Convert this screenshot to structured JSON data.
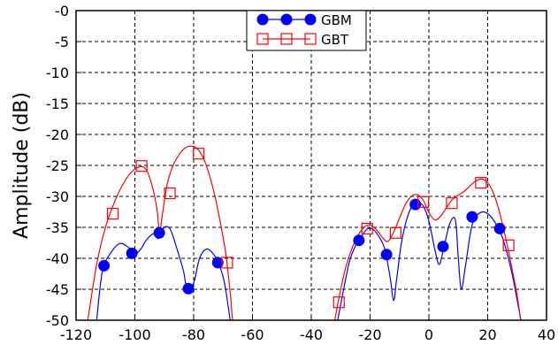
{
  "chart_data": {
    "type": "line",
    "title": "",
    "xlabel": "",
    "ylabel": "Amplitude (dB)",
    "xlim": [
      -120,
      40
    ],
    "ylim": [
      -50,
      0
    ],
    "grid": true,
    "legend_position": "top-center",
    "x_ticks": [
      -120,
      -100,
      -80,
      -60,
      -40,
      -20,
      0,
      20,
      40
    ],
    "x_tick_labels": [
      "-120",
      "-100",
      "-80",
      "-60",
      "-40",
      "-20",
      "0",
      "20",
      "40"
    ],
    "y_ticks": [
      0,
      -5,
      -10,
      -15,
      -20,
      -25,
      -30,
      -35,
      -40,
      -45,
      -50
    ],
    "y_tick_labels": [
      "-0",
      "-5",
      "-10",
      "-15",
      "-20",
      "-25",
      "-30",
      "-35",
      "-40",
      "-45",
      "-50"
    ],
    "series": [
      {
        "name": "GBM",
        "color": "#0000ff",
        "marker": "filled-circle",
        "markers": [
          [
            -110.5,
            -41.2
          ],
          [
            -101,
            -39.2
          ],
          [
            -91.7,
            -35.9
          ],
          [
            -81.8,
            -44.9
          ],
          [
            -71.8,
            -40.7
          ],
          [
            -23.8,
            -37.1
          ],
          [
            -14.4,
            -39.4
          ],
          [
            -4.6,
            -31.3
          ],
          [
            4.8,
            -38.1
          ],
          [
            14.7,
            -33.3
          ],
          [
            24.1,
            -35.2
          ]
        ],
        "curve_groups": [
          [
            [
              -113,
              -50
            ],
            [
              -111,
              -42
            ],
            [
              -108,
              -39
            ],
            [
              -105,
              -37.6
            ],
            [
              -102,
              -38.3
            ],
            [
              -100,
              -39.3
            ],
            [
              -98,
              -38.5
            ],
            [
              -96,
              -37
            ],
            [
              -93.5,
              -36
            ],
            [
              -92,
              -36.8
            ],
            [
              -90,
              -35
            ],
            [
              -88,
              -35.3
            ],
            [
              -86,
              -38
            ],
            [
              -83.5,
              -42
            ],
            [
              -82.2,
              -45
            ],
            [
              -80,
              -44
            ],
            [
              -78,
              -40
            ],
            [
              -75.5,
              -38.5
            ],
            [
              -73,
              -39.5
            ],
            [
              -71.5,
              -40.8
            ],
            [
              -69.5,
              -44
            ],
            [
              -67.6,
              -50
            ]
          ],
          [
            [
              -31,
              -50
            ],
            [
              -29,
              -45
            ],
            [
              -27,
              -40.5
            ],
            [
              -25,
              -38
            ],
            [
              -23,
              -36.5
            ],
            [
              -21,
              -35.3
            ],
            [
              -19,
              -35.3
            ],
            [
              -17,
              -36.5
            ],
            [
              -15,
              -38.5
            ],
            [
              -13.2,
              -43
            ],
            [
              -12,
              -46.8
            ],
            [
              -11,
              -43.5
            ],
            [
              -9.5,
              -38
            ],
            [
              -8,
              -34.5
            ],
            [
              -6,
              -31.8
            ],
            [
              -4,
              -31.1
            ],
            [
              -2,
              -31.5
            ],
            [
              0,
              -34
            ],
            [
              2,
              -38.5
            ],
            [
              3.5,
              -41
            ],
            [
              5,
              -38.5
            ],
            [
              7,
              -34.5
            ],
            [
              9,
              -33.8
            ],
            [
              10,
              -40
            ],
            [
              11,
              -45
            ],
            [
              12.5,
              -41
            ],
            [
              14.5,
              -35
            ],
            [
              16.5,
              -33
            ],
            [
              18.5,
              -32.5
            ],
            [
              20.5,
              -33
            ],
            [
              22.5,
              -34.2
            ],
            [
              24.5,
              -36
            ],
            [
              26.5,
              -39
            ],
            [
              28.5,
              -43
            ],
            [
              30.5,
              -48
            ],
            [
              31.3,
              -50
            ]
          ]
        ]
      },
      {
        "name": "GBT",
        "color": "#ff0000",
        "marker": "open-square",
        "markers": [
          [
            -107.5,
            -32.8
          ],
          [
            -97.7,
            -25.1
          ],
          [
            -88.1,
            -29.5
          ],
          [
            -78.3,
            -23.1
          ],
          [
            -68.6,
            -40.7
          ],
          [
            -30.6,
            -47.1
          ],
          [
            -21,
            -35.2
          ],
          [
            -11.3,
            -35.9
          ],
          [
            -1.9,
            -30.9
          ],
          [
            7.8,
            -31.1
          ],
          [
            17.7,
            -27.8
          ],
          [
            27.1,
            -37.9
          ]
        ],
        "curve_groups": [
          [
            [
              -116,
              -50
            ],
            [
              -113,
              -41
            ],
            [
              -110,
              -35
            ],
            [
              -107,
              -31
            ],
            [
              -104,
              -28
            ],
            [
              -101,
              -26
            ],
            [
              -98,
              -25.2
            ],
            [
              -96,
              -25.8
            ],
            [
              -94,
              -28.5
            ],
            [
              -92.5,
              -32
            ],
            [
              -91.6,
              -35.5
            ],
            [
              -90.5,
              -32.5
            ],
            [
              -89,
              -28
            ],
            [
              -87,
              -25
            ],
            [
              -85,
              -23.3
            ],
            [
              -83,
              -22.2
            ],
            [
              -81,
              -21.9
            ],
            [
              -79,
              -22.2
            ],
            [
              -77,
              -23.5
            ],
            [
              -75,
              -26
            ],
            [
              -73,
              -29.5
            ],
            [
              -71,
              -34
            ],
            [
              -69,
              -39.5
            ],
            [
              -67.5,
              -46
            ],
            [
              -66.8,
              -50
            ]
          ],
          [
            [
              -32,
              -50
            ],
            [
              -30,
              -45
            ],
            [
              -28,
              -41
            ],
            [
              -26,
              -38.2
            ],
            [
              -24,
              -36.2
            ],
            [
              -22,
              -35
            ],
            [
              -20,
              -34.6
            ],
            [
              -18,
              -35.3
            ],
            [
              -16,
              -36.5
            ],
            [
              -14,
              -37.3
            ],
            [
              -12,
              -35.8
            ],
            [
              -10,
              -33.5
            ],
            [
              -8,
              -31.3
            ],
            [
              -6,
              -30
            ],
            [
              -4,
              -29.7
            ],
            [
              -2,
              -30.6
            ],
            [
              0,
              -32.6
            ],
            [
              2,
              -33.8
            ],
            [
              4,
              -33.2
            ],
            [
              6,
              -31.8
            ],
            [
              8,
              -30.5
            ],
            [
              10,
              -29.8
            ],
            [
              12,
              -29.2
            ],
            [
              14,
              -28.3
            ],
            [
              16,
              -27.5
            ],
            [
              18,
              -27.2
            ],
            [
              20,
              -27.8
            ],
            [
              22,
              -29.5
            ],
            [
              24,
              -32.5
            ],
            [
              26,
              -36.5
            ],
            [
              28,
              -41
            ],
            [
              30,
              -46
            ],
            [
              31.2,
              -50
            ]
          ]
        ]
      }
    ]
  }
}
